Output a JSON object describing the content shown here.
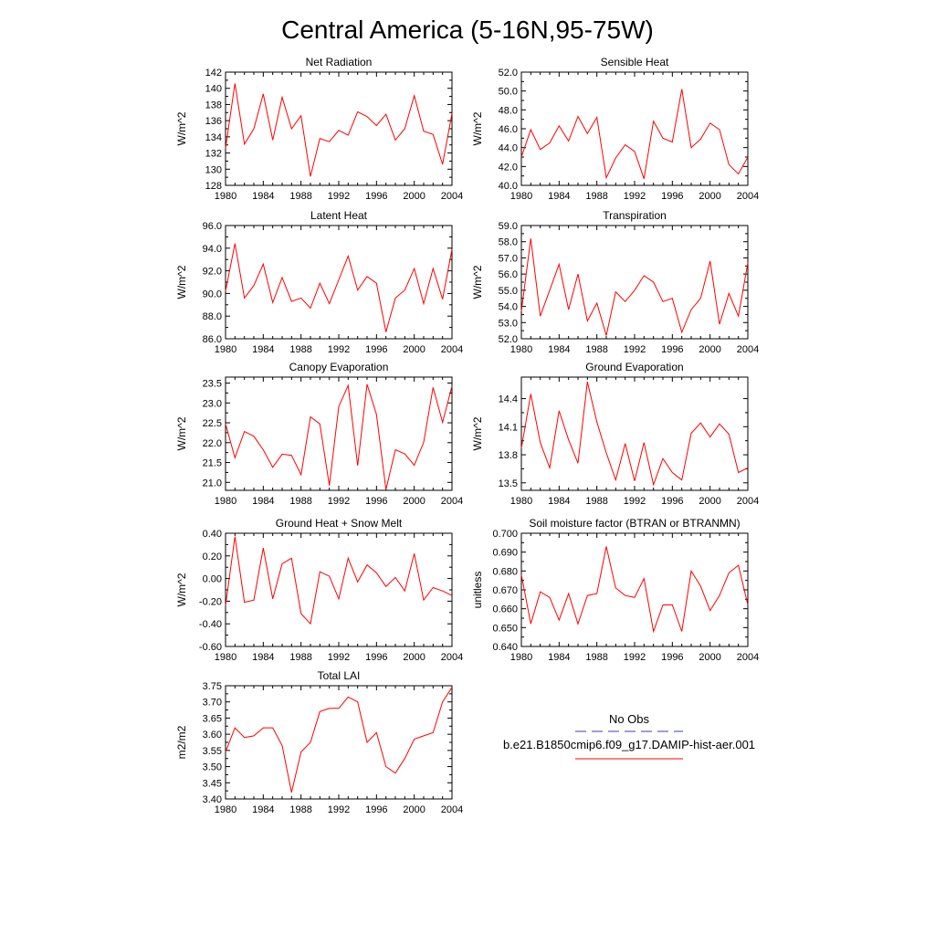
{
  "title": "Central America (5-16N,95-75W)",
  "legend": {
    "obs_label": "No Obs",
    "obs_color": "#3b3bb8",
    "model_label": "b.e21.B1850cmip6.f09_g17.DAMIP-hist-aer.001",
    "model_color": "#ff0000"
  },
  "chart_data": [
    {
      "type": "line",
      "title": "Net Radiation",
      "ylabel": "W/m^2",
      "xlim": [
        1980,
        2004
      ],
      "ylim": [
        128,
        142
      ],
      "yticks": [
        "128",
        "130",
        "132",
        "134",
        "136",
        "138",
        "140",
        "142"
      ],
      "xticks": [
        "1980",
        "1984",
        "1988",
        "1992",
        "1996",
        "2000",
        "2004"
      ],
      "x": [
        1980,
        1981,
        1982,
        1983,
        1984,
        1985,
        1986,
        1987,
        1988,
        1989,
        1990,
        1991,
        1992,
        1993,
        1994,
        1995,
        1996,
        1997,
        1998,
        1999,
        2000,
        2001,
        2002,
        2003,
        2004
      ],
      "series": [
        {
          "values": [
            132.6,
            140.6,
            133.1,
            135.0,
            139.3,
            133.6,
            138.9,
            135.0,
            136.6,
            129.1,
            133.8,
            133.4,
            134.8,
            134.2,
            137.1,
            136.5,
            135.4,
            136.8,
            133.6,
            135.0,
            139.1,
            134.7,
            134.3,
            130.6,
            136.9
          ]
        }
      ]
    },
    {
      "type": "line",
      "title": "Sensible Heat",
      "ylabel": "W/m^2",
      "xlim": [
        1980,
        2004
      ],
      "ylim": [
        40,
        52
      ],
      "yticks": [
        "40.0",
        "42.0",
        "44.0",
        "46.0",
        "48.0",
        "50.0",
        "52.0"
      ],
      "xticks": [
        "1980",
        "1984",
        "1988",
        "1992",
        "1996",
        "2000",
        "2004"
      ],
      "x": [
        1980,
        1981,
        1982,
        1983,
        1984,
        1985,
        1986,
        1987,
        1988,
        1989,
        1990,
        1991,
        1992,
        1993,
        1994,
        1995,
        1996,
        1997,
        1998,
        1999,
        2000,
        2001,
        2002,
        2003,
        2004
      ],
      "series": [
        {
          "values": [
            43.0,
            45.9,
            43.8,
            44.5,
            46.3,
            44.7,
            47.3,
            45.5,
            47.2,
            40.8,
            42.9,
            44.3,
            43.6,
            40.7,
            46.8,
            45.0,
            44.6,
            50.2,
            44.0,
            44.9,
            46.6,
            45.9,
            42.2,
            41.2,
            43.0
          ]
        }
      ]
    },
    {
      "type": "line",
      "title": "Latent Heat",
      "ylabel": "W/m^2",
      "xlim": [
        1980,
        2004
      ],
      "ylim": [
        86,
        96
      ],
      "yticks": [
        "86.0",
        "88.0",
        "90.0",
        "92.0",
        "94.0",
        "96.0"
      ],
      "xticks": [
        "1980",
        "1984",
        "1988",
        "1992",
        "1996",
        "2000",
        "2004"
      ],
      "x": [
        1980,
        1981,
        1982,
        1983,
        1984,
        1985,
        1986,
        1987,
        1988,
        1989,
        1990,
        1991,
        1992,
        1993,
        1994,
        1995,
        1996,
        1997,
        1998,
        1999,
        2000,
        2001,
        2002,
        2003,
        2004
      ],
      "series": [
        {
          "values": [
            90.2,
            94.4,
            89.6,
            90.7,
            92.6,
            89.2,
            91.4,
            89.3,
            89.6,
            88.7,
            90.9,
            89.1,
            91.2,
            93.3,
            90.3,
            91.5,
            90.9,
            86.6,
            89.6,
            90.3,
            92.2,
            89.1,
            92.2,
            89.5,
            93.9
          ]
        }
      ]
    },
    {
      "type": "line",
      "title": "Transpiration",
      "ylabel": "W/m^2",
      "xlim": [
        1980,
        2004
      ],
      "ylim": [
        52,
        59
      ],
      "yticks": [
        "52.0",
        "53.0",
        "54.0",
        "55.0",
        "56.0",
        "57.0",
        "58.0",
        "59.0"
      ],
      "xticks": [
        "1980",
        "1984",
        "1988",
        "1992",
        "1996",
        "2000",
        "2004"
      ],
      "x": [
        1980,
        1981,
        1982,
        1983,
        1984,
        1985,
        1986,
        1987,
        1988,
        1989,
        1990,
        1991,
        1992,
        1993,
        1994,
        1995,
        1996,
        1997,
        1998,
        1999,
        2000,
        2001,
        2002,
        2003,
        2004
      ],
      "series": [
        {
          "values": [
            53.7,
            58.2,
            53.4,
            55.0,
            56.6,
            53.8,
            56.0,
            53.1,
            54.2,
            52.2,
            54.9,
            54.3,
            55.0,
            55.9,
            55.5,
            54.3,
            54.5,
            52.4,
            53.8,
            54.5,
            56.8,
            52.9,
            54.8,
            53.4,
            56.7
          ]
        }
      ]
    },
    {
      "type": "line",
      "title": "Canopy Evaporation",
      "ylabel": "W/m^2",
      "xlim": [
        1980,
        2004
      ],
      "ylim": [
        20.8,
        23.65
      ],
      "yticks": [
        "21.0",
        "21.5",
        "22.0",
        "22.5",
        "23.0",
        "23.5"
      ],
      "ytick_values": [
        21.0,
        21.5,
        22.0,
        22.5,
        23.0,
        23.5
      ],
      "xticks": [
        "1980",
        "1984",
        "1988",
        "1992",
        "1996",
        "2000",
        "2004"
      ],
      "x": [
        1980,
        1981,
        1982,
        1983,
        1984,
        1985,
        1986,
        1987,
        1988,
        1989,
        1990,
        1991,
        1992,
        1993,
        1994,
        1995,
        1996,
        1997,
        1998,
        1999,
        2000,
        2001,
        2002,
        2003,
        2004
      ],
      "series": [
        {
          "values": [
            22.47,
            21.62,
            22.28,
            22.16,
            21.82,
            21.38,
            21.71,
            21.68,
            21.19,
            22.65,
            22.47,
            20.92,
            22.91,
            23.44,
            21.42,
            23.47,
            22.71,
            20.82,
            21.82,
            21.72,
            21.43,
            22.01,
            23.39,
            22.51,
            23.42
          ]
        }
      ]
    },
    {
      "type": "line",
      "title": "Ground Evaporation",
      "ylabel": "W/m^2",
      "xlim": [
        1980,
        2004
      ],
      "ylim": [
        13.42,
        14.63
      ],
      "yticks": [
        "13.5",
        "13.8",
        "14.1",
        "14.4"
      ],
      "ytick_values": [
        13.5,
        13.8,
        14.1,
        14.4
      ],
      "xticks": [
        "1980",
        "1984",
        "1988",
        "1992",
        "1996",
        "2000",
        "2004"
      ],
      "x": [
        1980,
        1981,
        1982,
        1983,
        1984,
        1985,
        1986,
        1987,
        1988,
        1989,
        1990,
        1991,
        1992,
        1993,
        1994,
        1995,
        1996,
        1997,
        1998,
        1999,
        2000,
        2001,
        2002,
        2003,
        2004
      ],
      "series": [
        {
          "values": [
            13.87,
            14.45,
            13.93,
            13.66,
            14.27,
            13.96,
            13.71,
            14.58,
            14.15,
            13.82,
            13.53,
            13.92,
            13.52,
            13.93,
            13.48,
            13.76,
            13.61,
            13.53,
            14.03,
            14.14,
            13.99,
            14.13,
            14.02,
            13.61,
            13.66
          ]
        }
      ]
    },
    {
      "type": "line",
      "title": "Ground Heat + Snow Melt",
      "ylabel": "W/m^2",
      "xlim": [
        1980,
        2004
      ],
      "ylim": [
        -0.6,
        0.4
      ],
      "yticks": [
        "-0.60",
        "-0.40",
        "-0.20",
        "0.00",
        "0.20",
        "0.40"
      ],
      "xticks": [
        "1980",
        "1984",
        "1988",
        "1992",
        "1996",
        "2000",
        "2004"
      ],
      "x": [
        1980,
        1981,
        1982,
        1983,
        1984,
        1985,
        1986,
        1987,
        1988,
        1989,
        1990,
        1991,
        1992,
        1993,
        1994,
        1995,
        1996,
        1997,
        1998,
        1999,
        2000,
        2001,
        2002,
        2003,
        2004
      ],
      "series": [
        {
          "values": [
            -0.24,
            0.37,
            -0.21,
            -0.19,
            0.27,
            -0.18,
            0.13,
            0.18,
            -0.31,
            -0.4,
            0.06,
            0.02,
            -0.18,
            0.18,
            -0.03,
            0.12,
            0.05,
            -0.07,
            0.01,
            -0.11,
            0.22,
            -0.19,
            -0.08,
            -0.11,
            -0.15
          ]
        }
      ]
    },
    {
      "type": "line",
      "title": "Soil moisture factor (BTRAN or BTRANMN)",
      "ylabel": "unitless",
      "xlim": [
        1980,
        2004
      ],
      "ylim": [
        0.64,
        0.7
      ],
      "yticks": [
        "0.640",
        "0.650",
        "0.660",
        "0.670",
        "0.680",
        "0.690",
        "0.700"
      ],
      "xticks": [
        "1980",
        "1984",
        "1988",
        "1992",
        "1996",
        "2000",
        "2004"
      ],
      "x": [
        1980,
        1981,
        1982,
        1983,
        1984,
        1985,
        1986,
        1987,
        1988,
        1989,
        1990,
        1991,
        1992,
        1993,
        1994,
        1995,
        1996,
        1997,
        1998,
        1999,
        2000,
        2001,
        2002,
        2003,
        2004
      ],
      "series": [
        {
          "values": [
            0.678,
            0.652,
            0.669,
            0.666,
            0.654,
            0.668,
            0.652,
            0.667,
            0.668,
            0.693,
            0.671,
            0.667,
            0.666,
            0.676,
            0.648,
            0.662,
            0.662,
            0.648,
            0.68,
            0.672,
            0.659,
            0.667,
            0.679,
            0.683,
            0.662
          ]
        }
      ]
    },
    {
      "type": "line",
      "title": "Total LAI",
      "ylabel": "m2/m2",
      "xlim": [
        1980,
        2004
      ],
      "ylim": [
        3.4,
        3.75
      ],
      "yticks": [
        "3.40",
        "3.45",
        "3.50",
        "3.55",
        "3.60",
        "3.65",
        "3.70",
        "3.75"
      ],
      "xticks": [
        "1980",
        "1984",
        "1988",
        "1992",
        "1996",
        "2000",
        "2004"
      ],
      "x": [
        1980,
        1981,
        1982,
        1983,
        1984,
        1985,
        1986,
        1987,
        1988,
        1989,
        1990,
        1991,
        1992,
        1993,
        1994,
        1995,
        1996,
        1997,
        1998,
        1999,
        2000,
        2001,
        2002,
        2003,
        2004
      ],
      "series": [
        {
          "values": [
            3.545,
            3.62,
            3.59,
            3.595,
            3.62,
            3.62,
            3.565,
            3.42,
            3.545,
            3.575,
            3.67,
            3.68,
            3.68,
            3.715,
            3.7,
            3.575,
            3.605,
            3.5,
            3.48,
            3.525,
            3.585,
            3.595,
            3.605,
            3.7,
            3.745
          ]
        }
      ]
    }
  ]
}
